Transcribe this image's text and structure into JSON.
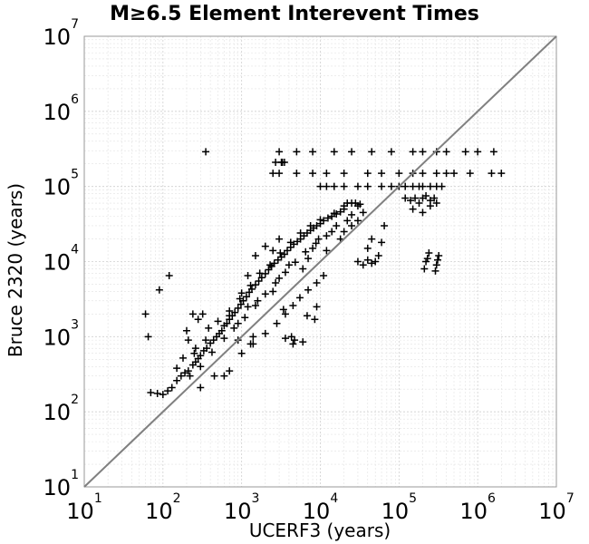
{
  "chart_data": {
    "type": "scatter",
    "title": "M≥6.5 Element Interevent Times",
    "xlabel": "UCERF3 (years)",
    "ylabel": "Bruce 2320 (years)",
    "xscale": "log",
    "yscale": "log",
    "xlim": [
      10,
      10000000
    ],
    "ylim": [
      10,
      10000000
    ],
    "grid": true,
    "x_ticks": [
      {
        "base": "10",
        "exp": "1"
      },
      {
        "base": "10",
        "exp": "2"
      },
      {
        "base": "10",
        "exp": "3"
      },
      {
        "base": "10",
        "exp": "4"
      },
      {
        "base": "10",
        "exp": "5"
      },
      {
        "base": "10",
        "exp": "6"
      },
      {
        "base": "10",
        "exp": "7"
      }
    ],
    "y_ticks": [
      {
        "base": "10",
        "exp": "1"
      },
      {
        "base": "10",
        "exp": "2"
      },
      {
        "base": "10",
        "exp": "3"
      },
      {
        "base": "10",
        "exp": "4"
      },
      {
        "base": "10",
        "exp": "5"
      },
      {
        "base": "10",
        "exp": "6"
      },
      {
        "base": "10",
        "exp": "7"
      }
    ],
    "reference_line": {
      "x": [
        10,
        10000000
      ],
      "y": [
        10,
        10000000
      ],
      "color": "#808080"
    },
    "marker": "plus",
    "marker_color": "#000000",
    "points": [
      [
        70,
        180
      ],
      [
        85,
        175
      ],
      [
        100,
        170
      ],
      [
        115,
        190
      ],
      [
        130,
        210
      ],
      [
        150,
        260
      ],
      [
        170,
        300
      ],
      [
        190,
        330
      ],
      [
        210,
        350
      ],
      [
        240,
        420
      ],
      [
        260,
        460
      ],
      [
        280,
        510
      ],
      [
        300,
        560
      ],
      [
        330,
        650
      ],
      [
        360,
        700
      ],
      [
        400,
        820
      ],
      [
        440,
        900
      ],
      [
        480,
        1000
      ],
      [
        520,
        1100
      ],
      [
        560,
        1200
      ],
      [
        600,
        1400
      ],
      [
        650,
        1500
      ],
      [
        700,
        1700
      ],
      [
        760,
        1900
      ],
      [
        820,
        2100
      ],
      [
        900,
        2400
      ],
      [
        980,
        2700
      ],
      [
        1050,
        3000
      ],
      [
        1150,
        3400
      ],
      [
        1250,
        3900
      ],
      [
        1350,
        4300
      ],
      [
        1500,
        4900
      ],
      [
        1650,
        5500
      ],
      [
        1800,
        6100
      ],
      [
        2000,
        6900
      ],
      [
        2200,
        7800
      ],
      [
        2400,
        8600
      ],
      [
        2600,
        9500
      ],
      [
        2900,
        10500
      ],
      [
        3200,
        11500
      ],
      [
        3500,
        12500
      ],
      [
        3800,
        14000
      ],
      [
        4200,
        15500
      ],
      [
        4600,
        17000
      ],
      [
        5100,
        18500
      ],
      [
        5600,
        20000
      ],
      [
        6200,
        22000
      ],
      [
        6800,
        24000
      ],
      [
        7500,
        26000
      ],
      [
        8200,
        28000
      ],
      [
        9000,
        30000
      ],
      [
        10000,
        32000
      ],
      [
        11000,
        35000
      ],
      [
        12500,
        38000
      ],
      [
        14000,
        40000
      ],
      [
        16000,
        43000
      ],
      [
        18000,
        46000
      ],
      [
        20000,
        50000
      ],
      [
        150,
        380
      ],
      [
        180,
        520
      ],
      [
        220,
        300
      ],
      [
        260,
        700
      ],
      [
        300,
        400
      ],
      [
        350,
        900
      ],
      [
        420,
        620
      ],
      [
        500,
        1600
      ],
      [
        600,
        950
      ],
      [
        700,
        2200
      ],
      [
        800,
        1300
      ],
      [
        950,
        3200
      ],
      [
        1100,
        1800
      ],
      [
        1300,
        4800
      ],
      [
        1500,
        2600
      ],
      [
        1700,
        7000
      ],
      [
        2000,
        3700
      ],
      [
        2300,
        9000
      ],
      [
        2700,
        5200
      ],
      [
        3100,
        13000
      ],
      [
        3600,
        7200
      ],
      [
        4200,
        18000
      ],
      [
        4800,
        9800
      ],
      [
        5600,
        24000
      ],
      [
        6500,
        13500
      ],
      [
        7500,
        30000
      ],
      [
        8800,
        17500
      ],
      [
        10000,
        36000
      ],
      [
        12000,
        22000
      ],
      [
        15000,
        44000
      ],
      [
        1000,
        600
      ],
      [
        1400,
        800
      ],
      [
        2000,
        1100
      ],
      [
        2800,
        1500
      ],
      [
        3600,
        2000
      ],
      [
        4500,
        2600
      ],
      [
        5500,
        3300
      ],
      [
        7000,
        4200
      ],
      [
        9000,
        5200
      ],
      [
        11000,
        6500
      ],
      [
        300,
        210
      ],
      [
        450,
        300
      ],
      [
        700,
        1900
      ],
      [
        900,
        900
      ],
      [
        1200,
        2500
      ],
      [
        1600,
        3000
      ],
      [
        2500,
        4000
      ],
      [
        3000,
        6000
      ],
      [
        3400,
        2300
      ],
      [
        4000,
        9000
      ],
      [
        6000,
        8000
      ],
      [
        7000,
        11000
      ],
      [
        8000,
        15000
      ],
      [
        9500,
        20000
      ],
      [
        12000,
        14000
      ],
      [
        14000,
        25000
      ],
      [
        16000,
        30000
      ],
      [
        18000,
        20000
      ],
      [
        22000,
        35000
      ],
      [
        25000,
        42000
      ],
      [
        60,
        2000
      ],
      [
        65,
        1000
      ],
      [
        90,
        4200
      ],
      [
        120,
        6500
      ],
      [
        200,
        1200
      ],
      [
        210,
        900
      ],
      [
        250,
        600
      ],
      [
        280,
        1700
      ],
      [
        240,
        2000
      ],
      [
        320,
        2000
      ],
      [
        380,
        1300
      ],
      [
        600,
        300
      ],
      [
        700,
        350
      ],
      [
        900,
        1500
      ],
      [
        1000,
        3800
      ],
      [
        1200,
        6500
      ],
      [
        1500,
        12000
      ],
      [
        2000,
        16000
      ],
      [
        2500,
        14000
      ],
      [
        3000,
        20000
      ],
      [
        1300,
        800
      ],
      [
        1400,
        1000
      ],
      [
        3600,
        950
      ],
      [
        4300,
        1000
      ],
      [
        4500,
        800
      ],
      [
        4700,
        900
      ],
      [
        6000,
        850
      ],
      [
        6800,
        1900
      ],
      [
        8500,
        1700
      ],
      [
        9000,
        2500
      ],
      [
        20000,
        55000
      ],
      [
        22000,
        60000
      ],
      [
        25000,
        60000
      ],
      [
        28000,
        60000
      ],
      [
        30000,
        55000
      ],
      [
        32000,
        58000
      ],
      [
        35000,
        45000
      ],
      [
        20000,
        25000
      ],
      [
        25000,
        30000
      ],
      [
        30000,
        35000
      ],
      [
        30000,
        10000
      ],
      [
        35000,
        9000
      ],
      [
        40000,
        10500
      ],
      [
        45000,
        9500
      ],
      [
        50000,
        10000
      ],
      [
        55000,
        12000
      ],
      [
        40000,
        15000
      ],
      [
        45000,
        20000
      ],
      [
        60000,
        18000
      ],
      [
        65000,
        30000
      ],
      [
        210000,
        8000
      ],
      [
        220000,
        10000
      ],
      [
        230000,
        11000
      ],
      [
        240000,
        13000
      ],
      [
        290000,
        7500
      ],
      [
        300000,
        9000
      ],
      [
        310000,
        10500
      ],
      [
        320000,
        12000
      ],
      [
        120000,
        70000
      ],
      [
        140000,
        65000
      ],
      [
        160000,
        70000
      ],
      [
        180000,
        60000
      ],
      [
        200000,
        70000
      ],
      [
        220000,
        75000
      ],
      [
        250000,
        65000
      ],
      [
        280000,
        70000
      ],
      [
        100000,
        100000
      ],
      [
        120000,
        100000
      ],
      [
        150000,
        100000
      ],
      [
        180000,
        100000
      ],
      [
        200000,
        100000
      ],
      [
        250000,
        100000
      ],
      [
        300000,
        100000
      ],
      [
        350000,
        100000
      ],
      [
        10000,
        100000
      ],
      [
        12000,
        100000
      ],
      [
        15000,
        100000
      ],
      [
        20000,
        100000
      ],
      [
        30000,
        100000
      ],
      [
        40000,
        100000
      ],
      [
        60000,
        100000
      ],
      [
        80000,
        100000
      ],
      [
        2500,
        150000
      ],
      [
        3000,
        150000
      ],
      [
        5000,
        150000
      ],
      [
        8000,
        150000
      ],
      [
        12000,
        150000
      ],
      [
        20000,
        150000
      ],
      [
        40000,
        150000
      ],
      [
        60000,
        150000
      ],
      [
        100000,
        150000
      ],
      [
        150000,
        150000
      ],
      [
        200000,
        150000
      ],
      [
        300000,
        150000
      ],
      [
        400000,
        150000
      ],
      [
        500000,
        150000
      ],
      [
        800000,
        150000
      ],
      [
        2000000,
        150000
      ],
      [
        1500000,
        150000
      ],
      [
        350,
        290000
      ],
      [
        3000,
        290000
      ],
      [
        5000,
        290000
      ],
      [
        8000,
        290000
      ],
      [
        15000,
        290000
      ],
      [
        25000,
        290000
      ],
      [
        45000,
        290000
      ],
      [
        80000,
        290000
      ],
      [
        150000,
        290000
      ],
      [
        200000,
        290000
      ],
      [
        300000,
        290000
      ],
      [
        400000,
        290000
      ],
      [
        700000,
        290000
      ],
      [
        1000000,
        290000
      ],
      [
        1600000,
        290000
      ],
      [
        3200,
        210000
      ],
      [
        3300,
        210000
      ],
      [
        3500,
        210000
      ],
      [
        2700,
        210000
      ],
      [
        150000,
        50000
      ],
      [
        200000,
        45000
      ],
      [
        250000,
        55000
      ],
      [
        300000,
        60000
      ]
    ]
  }
}
